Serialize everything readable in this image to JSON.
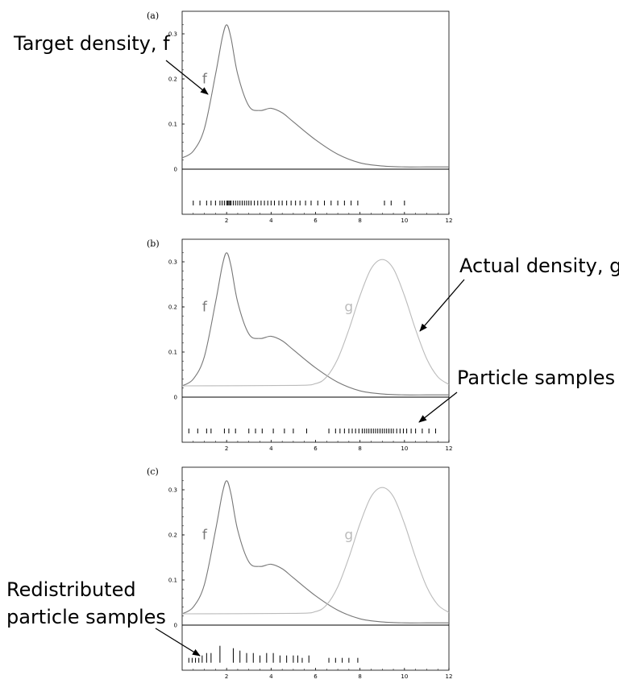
{
  "chart_data": [
    {
      "type": "line",
      "panel_label": "(a)",
      "xlim": [
        0,
        12
      ],
      "ylim": [
        -0.1,
        0.35
      ],
      "xticks": [
        "2",
        "4",
        "6",
        "8",
        "10",
        "12"
      ],
      "yticks": [
        "0",
        "0.1",
        "0.2",
        "0.3"
      ],
      "series": [
        {
          "name": "f",
          "color": "#777777",
          "x": [
            0,
            0.5,
            1,
            1.5,
            1.8,
            2,
            2.2,
            2.5,
            3,
            3.5,
            4,
            4.5,
            5,
            6,
            7,
            8,
            9,
            10,
            11,
            12
          ],
          "y": [
            0.025,
            0.04,
            0.09,
            0.21,
            0.29,
            0.32,
            0.29,
            0.21,
            0.14,
            0.13,
            0.135,
            0.125,
            0.105,
            0.065,
            0.033,
            0.014,
            0.007,
            0.005,
            0.005,
            0.005
          ]
        }
      ],
      "samples": [
        {
          "x": 0.5,
          "h": 1
        },
        {
          "x": 0.8,
          "h": 1
        },
        {
          "x": 1.1,
          "h": 1
        },
        {
          "x": 1.3,
          "h": 1
        },
        {
          "x": 1.5,
          "h": 1
        },
        {
          "x": 1.7,
          "h": 1
        },
        {
          "x": 1.8,
          "h": 1
        },
        {
          "x": 1.9,
          "h": 1
        },
        {
          "x": 2.0,
          "h": 1
        },
        {
          "x": 2.05,
          "h": 1
        },
        {
          "x": 2.1,
          "h": 1
        },
        {
          "x": 2.15,
          "h": 1
        },
        {
          "x": 2.2,
          "h": 1
        },
        {
          "x": 2.3,
          "h": 1
        },
        {
          "x": 2.4,
          "h": 1
        },
        {
          "x": 2.5,
          "h": 1
        },
        {
          "x": 2.6,
          "h": 1
        },
        {
          "x": 2.7,
          "h": 1
        },
        {
          "x": 2.8,
          "h": 1
        },
        {
          "x": 2.9,
          "h": 1
        },
        {
          "x": 3.0,
          "h": 1
        },
        {
          "x": 3.1,
          "h": 1
        },
        {
          "x": 3.25,
          "h": 1
        },
        {
          "x": 3.4,
          "h": 1
        },
        {
          "x": 3.55,
          "h": 1
        },
        {
          "x": 3.7,
          "h": 1
        },
        {
          "x": 3.85,
          "h": 1
        },
        {
          "x": 4.0,
          "h": 1
        },
        {
          "x": 4.15,
          "h": 1
        },
        {
          "x": 4.35,
          "h": 1
        },
        {
          "x": 4.5,
          "h": 1
        },
        {
          "x": 4.7,
          "h": 1
        },
        {
          "x": 4.9,
          "h": 1
        },
        {
          "x": 5.1,
          "h": 1
        },
        {
          "x": 5.3,
          "h": 1
        },
        {
          "x": 5.55,
          "h": 1
        },
        {
          "x": 5.8,
          "h": 1
        },
        {
          "x": 6.1,
          "h": 1
        },
        {
          "x": 6.4,
          "h": 1
        },
        {
          "x": 6.7,
          "h": 1
        },
        {
          "x": 7.0,
          "h": 1
        },
        {
          "x": 7.3,
          "h": 1
        },
        {
          "x": 7.6,
          "h": 1
        },
        {
          "x": 7.9,
          "h": 1
        },
        {
          "x": 9.1,
          "h": 1
        },
        {
          "x": 9.4,
          "h": 1
        },
        {
          "x": 10.0,
          "h": 1
        }
      ],
      "samples_row": -0.075,
      "labels": [
        {
          "text": "f",
          "x": 0.9,
          "y": 0.19,
          "style": "f"
        }
      ]
    },
    {
      "type": "line",
      "panel_label": "(b)",
      "xlim": [
        0,
        12
      ],
      "ylim": [
        -0.1,
        0.35
      ],
      "xticks": [
        "2",
        "4",
        "6",
        "8",
        "10",
        "12"
      ],
      "yticks": [
        "0",
        "0.1",
        "0.2",
        "0.3"
      ],
      "series": [
        {
          "name": "f",
          "color": "#777777",
          "x": [
            0,
            0.5,
            1,
            1.5,
            1.8,
            2,
            2.2,
            2.5,
            3,
            3.5,
            4,
            4.5,
            5,
            6,
            7,
            8,
            9,
            10,
            11,
            12
          ],
          "y": [
            0.025,
            0.04,
            0.09,
            0.21,
            0.29,
            0.32,
            0.29,
            0.21,
            0.14,
            0.13,
            0.135,
            0.125,
            0.105,
            0.065,
            0.033,
            0.014,
            0.007,
            0.005,
            0.005,
            0.005
          ]
        },
        {
          "name": "g",
          "color": "#bbbbbb",
          "x": [
            0,
            5,
            6,
            6.5,
            7,
            7.5,
            8,
            8.5,
            9,
            9.5,
            10,
            10.5,
            11,
            11.5,
            12
          ],
          "y": [
            0.025,
            0.026,
            0.03,
            0.045,
            0.085,
            0.15,
            0.225,
            0.285,
            0.305,
            0.285,
            0.225,
            0.15,
            0.085,
            0.045,
            0.028
          ]
        }
      ],
      "samples": [
        {
          "x": 0.3,
          "h": 1
        },
        {
          "x": 0.7,
          "h": 1
        },
        {
          "x": 1.1,
          "h": 1
        },
        {
          "x": 1.3,
          "h": 1
        },
        {
          "x": 1.9,
          "h": 1
        },
        {
          "x": 2.1,
          "h": 1
        },
        {
          "x": 2.4,
          "h": 1
        },
        {
          "x": 3.0,
          "h": 1
        },
        {
          "x": 3.3,
          "h": 1
        },
        {
          "x": 3.6,
          "h": 1
        },
        {
          "x": 4.1,
          "h": 1
        },
        {
          "x": 4.6,
          "h": 1
        },
        {
          "x": 5.0,
          "h": 1
        },
        {
          "x": 5.6,
          "h": 1
        },
        {
          "x": 6.6,
          "h": 1
        },
        {
          "x": 6.9,
          "h": 1
        },
        {
          "x": 7.1,
          "h": 1
        },
        {
          "x": 7.3,
          "h": 1
        },
        {
          "x": 7.5,
          "h": 1
        },
        {
          "x": 7.65,
          "h": 1
        },
        {
          "x": 7.8,
          "h": 1
        },
        {
          "x": 7.95,
          "h": 1
        },
        {
          "x": 8.1,
          "h": 1
        },
        {
          "x": 8.2,
          "h": 1
        },
        {
          "x": 8.3,
          "h": 1
        },
        {
          "x": 8.4,
          "h": 1
        },
        {
          "x": 8.5,
          "h": 1
        },
        {
          "x": 8.6,
          "h": 1
        },
        {
          "x": 8.7,
          "h": 1
        },
        {
          "x": 8.8,
          "h": 1
        },
        {
          "x": 8.9,
          "h": 1
        },
        {
          "x": 9.0,
          "h": 1
        },
        {
          "x": 9.1,
          "h": 1
        },
        {
          "x": 9.2,
          "h": 1
        },
        {
          "x": 9.3,
          "h": 1
        },
        {
          "x": 9.4,
          "h": 1
        },
        {
          "x": 9.5,
          "h": 1
        },
        {
          "x": 9.65,
          "h": 1
        },
        {
          "x": 9.8,
          "h": 1
        },
        {
          "x": 9.95,
          "h": 1
        },
        {
          "x": 10.1,
          "h": 1
        },
        {
          "x": 10.3,
          "h": 1
        },
        {
          "x": 10.5,
          "h": 1
        },
        {
          "x": 10.8,
          "h": 1
        },
        {
          "x": 11.1,
          "h": 1
        },
        {
          "x": 11.4,
          "h": 1
        }
      ],
      "samples_row": -0.075,
      "labels": [
        {
          "text": "f",
          "x": 0.9,
          "y": 0.19,
          "style": "f"
        },
        {
          "text": "g",
          "x": 7.3,
          "y": 0.19,
          "style": "g"
        }
      ]
    },
    {
      "type": "line",
      "panel_label": "(c)",
      "xlim": [
        0,
        12
      ],
      "ylim": [
        -0.1,
        0.35
      ],
      "xticks": [
        "2",
        "4",
        "6",
        "8",
        "10",
        "12"
      ],
      "yticks": [
        "0",
        "0.1",
        "0.2",
        "0.3"
      ],
      "series": [
        {
          "name": "f",
          "color": "#777777",
          "x": [
            0,
            0.5,
            1,
            1.5,
            1.8,
            2,
            2.2,
            2.5,
            3,
            3.5,
            4,
            4.5,
            5,
            6,
            7,
            8,
            9,
            10,
            11,
            12
          ],
          "y": [
            0.025,
            0.04,
            0.09,
            0.21,
            0.29,
            0.32,
            0.29,
            0.21,
            0.14,
            0.13,
            0.135,
            0.125,
            0.105,
            0.065,
            0.033,
            0.014,
            0.007,
            0.005,
            0.005,
            0.005
          ]
        },
        {
          "name": "g",
          "color": "#bbbbbb",
          "x": [
            0,
            5,
            6,
            6.5,
            7,
            7.5,
            8,
            8.5,
            9,
            9.5,
            10,
            10.5,
            11,
            11.5,
            12
          ],
          "y": [
            0.025,
            0.026,
            0.03,
            0.045,
            0.085,
            0.15,
            0.225,
            0.285,
            0.305,
            0.285,
            0.225,
            0.15,
            0.085,
            0.045,
            0.028
          ]
        }
      ],
      "samples": [
        {
          "x": 0.3,
          "h": 1
        },
        {
          "x": 0.45,
          "h": 1
        },
        {
          "x": 0.6,
          "h": 1
        },
        {
          "x": 0.75,
          "h": 1
        },
        {
          "x": 0.9,
          "h": 2
        },
        {
          "x": 1.1,
          "h": 3
        },
        {
          "x": 1.3,
          "h": 3
        },
        {
          "x": 1.7,
          "h": 6
        },
        {
          "x": 2.3,
          "h": 5
        },
        {
          "x": 2.6,
          "h": 4
        },
        {
          "x": 2.9,
          "h": 3
        },
        {
          "x": 3.2,
          "h": 3
        },
        {
          "x": 3.5,
          "h": 2
        },
        {
          "x": 3.8,
          "h": 3
        },
        {
          "x": 4.1,
          "h": 3
        },
        {
          "x": 4.4,
          "h": 2
        },
        {
          "x": 4.7,
          "h": 2
        },
        {
          "x": 5.0,
          "h": 2
        },
        {
          "x": 5.2,
          "h": 2
        },
        {
          "x": 5.4,
          "h": 1
        },
        {
          "x": 5.7,
          "h": 2
        },
        {
          "x": 6.6,
          "h": 1
        },
        {
          "x": 6.9,
          "h": 1
        },
        {
          "x": 7.2,
          "h": 1
        },
        {
          "x": 7.5,
          "h": 1
        },
        {
          "x": 7.9,
          "h": 1
        }
      ],
      "samples_row": -0.078,
      "labels": [
        {
          "text": "f",
          "x": 0.9,
          "y": 0.19,
          "style": "f"
        },
        {
          "text": "g",
          "x": 7.3,
          "y": 0.19,
          "style": "g"
        }
      ]
    }
  ],
  "annotations": [
    {
      "text": "Target density, f",
      "panel": 0
    },
    {
      "text": "Actual density, g",
      "panel": 1
    },
    {
      "text": "Particle samples",
      "panel": 1
    },
    {
      "text": [
        "Redistributed",
        "particle samples"
      ],
      "panel": 2
    }
  ]
}
